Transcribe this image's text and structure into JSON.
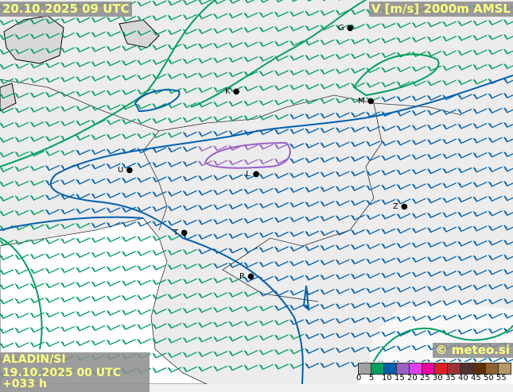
{
  "header": {
    "valid_time": "20.10.2025 09 UTC",
    "field": "V [m/s] 2000m AMSL"
  },
  "footer": {
    "model": "ALADIN/SI",
    "run": "19.10.2025 00 UTC +033 h",
    "copyright": "© meteo.si"
  },
  "legend": {
    "ticks": [
      "0",
      "5",
      "10",
      "15",
      "20",
      "25",
      "30",
      "35",
      "40",
      "45",
      "50",
      "55"
    ],
    "colors": [
      "#a0a0a0",
      "#00a060",
      "#0060b0",
      "#9a60c8",
      "#e040f0",
      "#f000a0",
      "#e02020",
      "#a03038",
      "#503030",
      "#603000",
      "#906030",
      "#b89868"
    ]
  },
  "cities": [
    {
      "label": "G"
    },
    {
      "label": "K"
    },
    {
      "label": "M"
    },
    {
      "label": "U"
    },
    {
      "label": "L"
    },
    {
      "label": "Z"
    },
    {
      "label": "T"
    },
    {
      "label": "R"
    }
  ],
  "contour_colors": {
    "c5": "#00a060",
    "c10": "#0060b0",
    "c15": "#9a60c8"
  }
}
